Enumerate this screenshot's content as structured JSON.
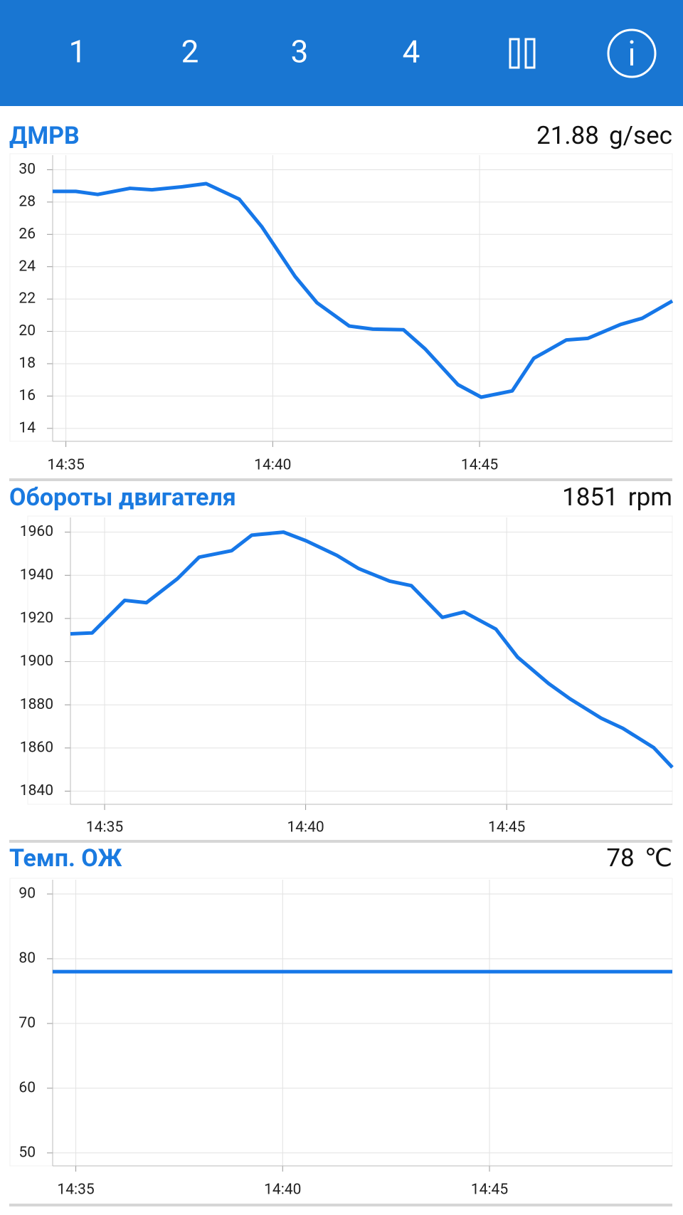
{
  "tabs": [
    "1",
    "2",
    "3",
    "4"
  ],
  "chart_data": [
    {
      "type": "line",
      "title": "ДМРВ",
      "reading": 21.88,
      "unit": "g/sec",
      "color": "#1677e8",
      "grid": true,
      "x": [
        874.68,
        875.24,
        875.77,
        876.55,
        877.08,
        877.83,
        878.39,
        879.19,
        879.74,
        880.54,
        881.07,
        881.85,
        882.42,
        883.16,
        883.69,
        884.48,
        885.04,
        885.79,
        886.31,
        887.1,
        887.62,
        888.41,
        888.93,
        889.66
      ],
      "values": [
        28.66,
        28.66,
        28.47,
        28.85,
        28.76,
        28.95,
        29.14,
        28.18,
        26.46,
        23.4,
        21.77,
        20.33,
        20.14,
        20.1,
        18.9,
        16.7,
        15.93,
        16.32,
        18.33,
        19.47,
        19.57,
        20.43,
        20.81,
        21.88
      ],
      "xlim": [
        874.68,
        889.66
      ],
      "ylim": [
        13.2,
        30.9
      ],
      "xticks": [
        {
          "value": 875,
          "label": "14:35"
        },
        {
          "value": 880,
          "label": "14:40"
        },
        {
          "value": 885,
          "label": "14:45"
        }
      ],
      "yticks": [
        14,
        16,
        18,
        20,
        22,
        24,
        26,
        28,
        30
      ]
    },
    {
      "type": "line",
      "title": "Обороты двигателя",
      "reading": 1851,
      "unit": "rpm",
      "color": "#1677e8",
      "grid": true,
      "x": [
        874.15,
        874.69,
        875.5,
        876.04,
        876.81,
        877.35,
        878.16,
        878.66,
        879.45,
        880.01,
        880.78,
        881.32,
        882.09,
        882.63,
        883.4,
        883.94,
        884.73,
        885.27,
        886.04,
        886.58,
        887.35,
        887.89,
        888.66,
        889.12
      ],
      "values": [
        1912.9,
        1913.3,
        1928.4,
        1927.3,
        1938.4,
        1948.4,
        1951.4,
        1958.6,
        1960,
        1956,
        1949.2,
        1943.1,
        1937.3,
        1935.2,
        1920.5,
        1923,
        1915.1,
        1902.1,
        1889.9,
        1882.7,
        1873.8,
        1869.1,
        1860.1,
        1851
      ],
      "xlim": [
        874.15,
        889.12
      ],
      "ylim": [
        1833.9,
        1966.8
      ],
      "xticks": [
        {
          "value": 875,
          "label": "14:35"
        },
        {
          "value": 880,
          "label": "14:40"
        },
        {
          "value": 885,
          "label": "14:45"
        }
      ],
      "yticks": [
        1840,
        1860,
        1880,
        1900,
        1920,
        1940,
        1960
      ]
    },
    {
      "type": "line",
      "title": "Темп. ОЖ",
      "reading": 78,
      "unit": "℃",
      "color": "#1677e8",
      "grid": true,
      "x": [
        874.44,
        889.42
      ],
      "values": [
        78,
        78
      ],
      "xlim": [
        874.44,
        889.42
      ],
      "ylim": [
        48,
        92.2
      ],
      "xticks": [
        {
          "value": 875,
          "label": "14:35"
        },
        {
          "value": 880,
          "label": "14:40"
        },
        {
          "value": 885,
          "label": "14:45"
        }
      ],
      "yticks": [
        50,
        60,
        70,
        80,
        90
      ]
    }
  ]
}
